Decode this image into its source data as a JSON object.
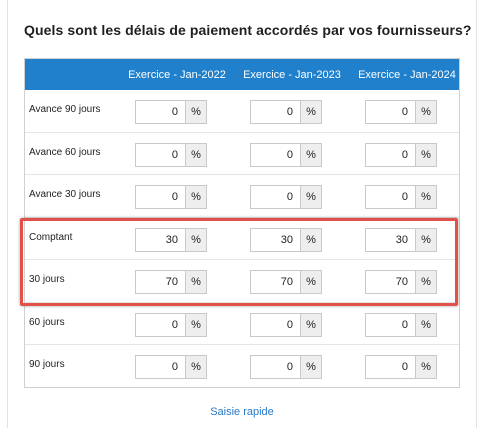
{
  "question": "Quels sont les délais de paiement accordés par vos fournisseurs?",
  "table": {
    "columns": [
      "Exercice - Jan-2022",
      "Exercice - Jan-2023",
      "Exercice - Jan-2024"
    ],
    "unit": "%",
    "rows": [
      {
        "label": "Avance 90 jours",
        "values": [
          "0",
          "0",
          "0"
        ]
      },
      {
        "label": "Avance 60 jours",
        "values": [
          "0",
          "0",
          "0"
        ]
      },
      {
        "label": "Avance 30 jours",
        "values": [
          "0",
          "0",
          "0"
        ]
      },
      {
        "label": "Comptant",
        "values": [
          "30",
          "30",
          "30"
        ]
      },
      {
        "label": "30 jours",
        "values": [
          "70",
          "70",
          "70"
        ]
      },
      {
        "label": "60 jours",
        "values": [
          "0",
          "0",
          "0"
        ]
      },
      {
        "label": "90 jours",
        "values": [
          "0",
          "0",
          "0"
        ]
      }
    ]
  },
  "quick_entry_link": "Saisie rapide",
  "colors": {
    "header_bg": "#2080cc",
    "highlight_border": "#e0514a",
    "link": "#2a78c4"
  }
}
